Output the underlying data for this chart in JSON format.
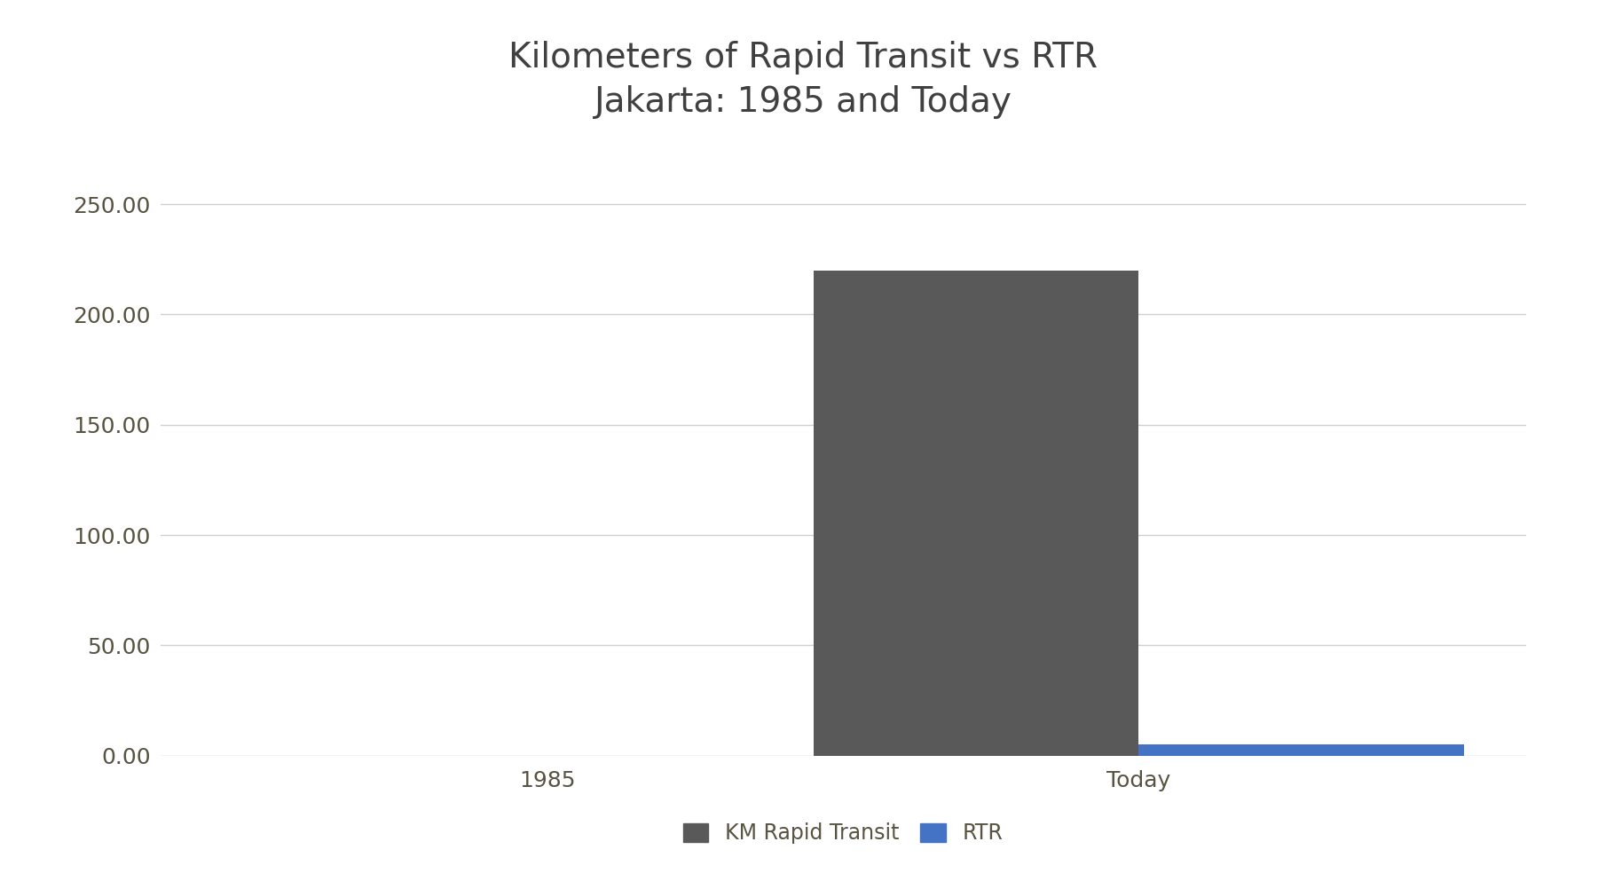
{
  "title_line1": "Kilometers of Rapid Transit vs RTR",
  "title_line2": "Jakarta: 1985 and Today",
  "title_color": "#404040",
  "categories": [
    "1985",
    "Today"
  ],
  "series": [
    {
      "name": "KM Rapid Transit",
      "values": [
        0,
        220
      ],
      "color": "#595959"
    },
    {
      "name": "RTR",
      "values": [
        0,
        5
      ],
      "color": "#4472c4"
    }
  ],
  "ylim": [
    0,
    270
  ],
  "yticks": [
    0,
    50,
    100,
    150,
    200,
    250
  ],
  "ytick_labels": [
    "0.00",
    "50.00",
    "100.00",
    "150.00",
    "200.00",
    "250.00"
  ],
  "grid_color": "#d0d0d0",
  "background_color": "#ffffff",
  "bar_width": 0.55,
  "title_fontsize": 28,
  "tick_fontsize": 18,
  "tick_color": "#595342",
  "legend_fontsize": 17
}
